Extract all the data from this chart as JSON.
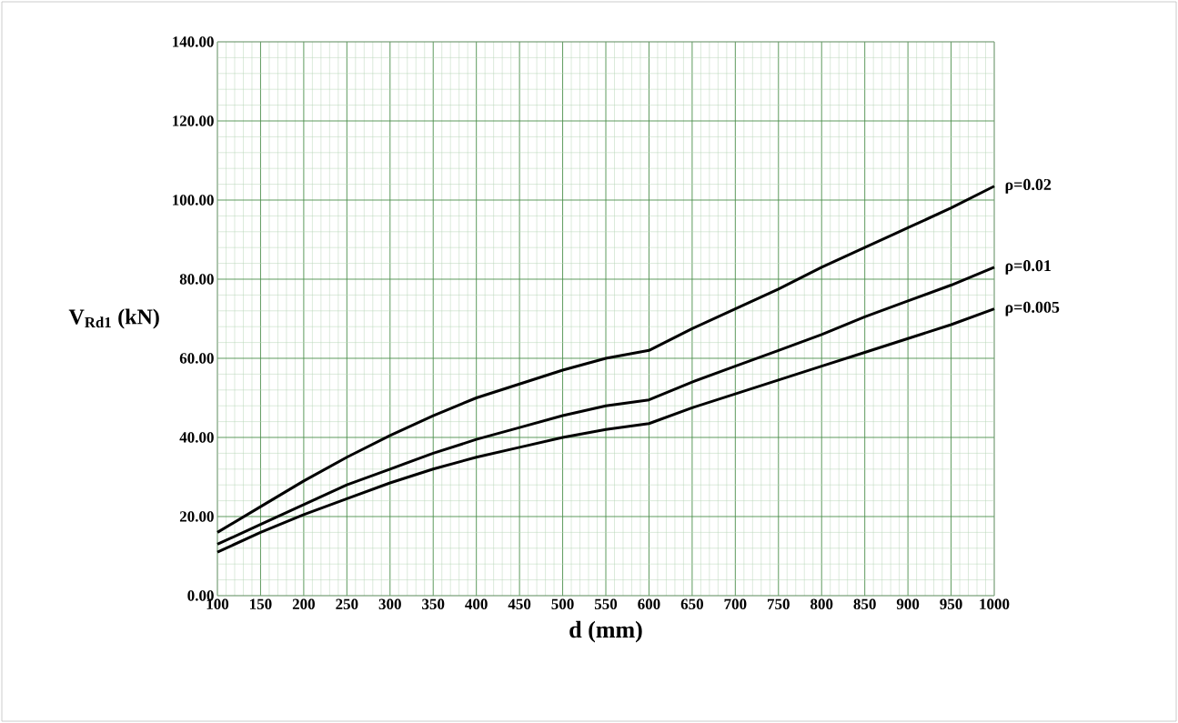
{
  "chart_data": {
    "type": "line",
    "xlabel": "d (mm)",
    "ylabel": "V$_{Rd1}$ (kN)",
    "x": [
      100,
      150,
      200,
      250,
      300,
      350,
      400,
      450,
      500,
      550,
      600,
      650,
      700,
      750,
      800,
      850,
      900,
      950,
      1000
    ],
    "series": [
      {
        "name": "ρ=0.02",
        "color": "#000000",
        "values": [
          16,
          22.5,
          29,
          35,
          40.5,
          45.5,
          50,
          53.5,
          57,
          60,
          62,
          67.5,
          72.5,
          77.5,
          83,
          88,
          93,
          98,
          103.5
        ]
      },
      {
        "name": "ρ=0.01",
        "color": "#000000",
        "values": [
          13,
          18,
          23,
          28,
          32,
          36,
          39.5,
          42.5,
          45.5,
          48,
          49.5,
          54,
          58,
          62,
          66,
          70.5,
          74.5,
          78.5,
          83
        ]
      },
      {
        "name": "ρ=0.005",
        "color": "#000000",
        "values": [
          11,
          16,
          20.5,
          24.5,
          28.5,
          32,
          35,
          37.5,
          40,
          42,
          43.5,
          47.5,
          51,
          54.5,
          58,
          61.5,
          65,
          68.5,
          72.5
        ]
      }
    ],
    "xlim": [
      100,
      1000
    ],
    "ylim": [
      0,
      140
    ],
    "xticks": [
      100,
      150,
      200,
      250,
      300,
      350,
      400,
      450,
      500,
      550,
      600,
      650,
      700,
      750,
      800,
      850,
      900,
      950,
      1000
    ],
    "yticks": [
      {
        "value": 0,
        "label": "0.00"
      },
      {
        "value": 20,
        "label": "20.00"
      },
      {
        "value": 40,
        "label": "40.00"
      },
      {
        "value": 60,
        "label": "60.00"
      },
      {
        "value": 80,
        "label": "80.00"
      },
      {
        "value": 100,
        "label": "100.00"
      },
      {
        "value": 120,
        "label": "120.00"
      },
      {
        "value": 140,
        "label": "140.00"
      }
    ],
    "grid": true,
    "legend": false,
    "marker": "none",
    "line_style": "solid"
  }
}
